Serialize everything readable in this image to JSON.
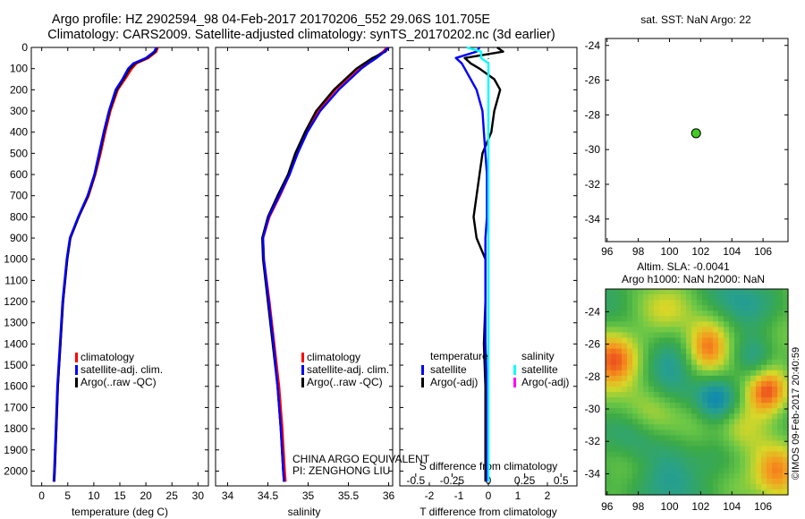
{
  "header": {
    "line1": "Argo profile: HZ 2902594_98 04-Feb-2017 20170206_552 29.06S 101.705E",
    "line2": "Climatology: CARS2009. Satellite-adjusted climatology: synTS_20170202.nc (3d earlier)"
  },
  "side_note": "©IMOS 09-Feb-2017 20:40:59",
  "colors": {
    "climatology": "#ff0000",
    "satellite": "#0000ff",
    "argo": "#000000",
    "sat_sal": "#00ffff",
    "argo_sal": "#ff00ff",
    "dot": "#44cc22"
  },
  "chart_data": [
    {
      "type": "line",
      "id": "temperature",
      "xlabel": "temperature (deg C)",
      "ylabel": "",
      "xlim": [
        -2,
        32
      ],
      "ylim": [
        0,
        2070
      ],
      "xticks": [
        0,
        5,
        10,
        15,
        20,
        25,
        30
      ],
      "yticks": [
        0,
        100,
        200,
        300,
        400,
        500,
        600,
        700,
        800,
        900,
        1000,
        1100,
        1200,
        1300,
        1400,
        1500,
        1600,
        1700,
        1800,
        1900,
        2000
      ],
      "depth": [
        0,
        20,
        50,
        75,
        100,
        150,
        200,
        300,
        400,
        500,
        600,
        700,
        800,
        900,
        1000,
        1200,
        1400,
        1600,
        1800,
        2000,
        2050
      ],
      "legend": [
        "climatology",
        "satellite-adj. clim.",
        "Argo(..raw -QC)"
      ],
      "series": [
        {
          "name": "climatology",
          "values": [
            22.3,
            22.0,
            20.5,
            18.2,
            17.3,
            16.0,
            14.6,
            13.2,
            12.2,
            11.3,
            10.3,
            9.0,
            7.1,
            5.5,
            4.9,
            4.1,
            3.6,
            3.1,
            2.8,
            2.5,
            2.4
          ]
        },
        {
          "name": "satellite-adj. clim.",
          "values": [
            22.0,
            21.6,
            20.0,
            17.6,
            16.6,
            15.5,
            14.2,
            12.9,
            11.9,
            11.0,
            10.1,
            8.8,
            7.0,
            5.4,
            4.8,
            4.0,
            3.5,
            3.0,
            2.7,
            2.4,
            2.3
          ]
        },
        {
          "name": "Argo(..raw -QC)",
          "values": [
            22.1,
            21.8,
            20.2,
            17.9,
            16.9,
            15.7,
            14.4,
            13.0,
            12.0,
            11.1,
            10.2,
            8.9,
            7.1,
            5.5,
            4.9,
            4.1,
            3.6,
            3.1,
            2.8,
            2.5,
            2.4
          ]
        }
      ]
    },
    {
      "type": "line",
      "id": "salinity",
      "xlabel": "salinity",
      "ylabel": "",
      "xlim": [
        33.85,
        36.05
      ],
      "ylim": [
        0,
        2070
      ],
      "xticks": [
        34,
        34.5,
        35,
        35.5,
        36
      ],
      "xticklabels": [
        "34",
        "34.5",
        "35",
        "35.5",
        "36"
      ],
      "depth": [
        0,
        20,
        50,
        75,
        100,
        150,
        200,
        300,
        400,
        500,
        600,
        700,
        800,
        900,
        1000,
        1200,
        1400,
        1600,
        1800,
        2000,
        2050
      ],
      "legend": [
        "climatology",
        "satellite-adj. clim.",
        "Argo(..raw -QC)"
      ],
      "annotation": [
        "CHINA ARGO EQUIVALENT",
        "PI: ZENGHONG LIU"
      ],
      "series": [
        {
          "name": "climatology",
          "values": [
            35.98,
            35.93,
            35.82,
            35.72,
            35.62,
            35.48,
            35.34,
            35.12,
            34.97,
            34.86,
            34.77,
            34.65,
            34.52,
            34.44,
            34.45,
            34.52,
            34.58,
            34.64,
            34.68,
            34.71,
            34.72
          ]
        },
        {
          "name": "satellite-adj. clim.",
          "values": [
            35.99,
            35.95,
            35.85,
            35.75,
            35.66,
            35.52,
            35.38,
            35.15,
            34.99,
            34.87,
            34.77,
            34.64,
            34.51,
            34.44,
            34.45,
            34.51,
            34.57,
            34.62,
            34.66,
            34.69,
            34.7
          ]
        },
        {
          "name": "Argo(..raw -QC)",
          "values": [
            36.0,
            35.96,
            35.8,
            35.7,
            35.6,
            35.46,
            35.32,
            35.1,
            34.96,
            34.84,
            34.75,
            34.62,
            34.5,
            34.43,
            34.44,
            34.5,
            34.56,
            34.62,
            34.66,
            34.69,
            34.7
          ]
        }
      ]
    },
    {
      "type": "line",
      "id": "difference",
      "xlabel": "T difference from climatology",
      "toplabel": "S difference from climatology",
      "xlim": [
        -3,
        3
      ],
      "ylim": [
        0,
        2070
      ],
      "xticks": [
        -2,
        -1,
        0,
        1,
        2
      ],
      "topticks": [
        -0.5,
        -0.25,
        0,
        0.25,
        0.5
      ],
      "topticklabels": [
        "-0.5",
        "-0.25",
        "0",
        "0.25",
        "0.5"
      ],
      "depth": [
        0,
        20,
        50,
        75,
        100,
        150,
        200,
        300,
        400,
        500,
        600,
        700,
        800,
        900,
        1000,
        1200,
        1400,
        1600,
        1800,
        2000,
        2050
      ],
      "legend_headers": [
        "temperature",
        "salinity"
      ],
      "legend": [
        "satellite",
        "Argo(-adj)",
        "satellite",
        "Argo(-adj)"
      ],
      "series": [
        {
          "name": "temperature satellite",
          "values": [
            -0.3,
            -0.4,
            -1.1,
            -0.9,
            -0.8,
            -0.6,
            -0.4,
            -0.2,
            -0.15,
            -0.1,
            -0.05,
            -0.05,
            -0.05,
            -0.1,
            -0.1,
            -0.1,
            -0.1,
            -0.05,
            -0.05,
            -0.05,
            -0.05
          ]
        },
        {
          "name": "temperature Argo(-adj)",
          "values": [
            0.3,
            0.5,
            -0.8,
            -0.6,
            -0.3,
            0.2,
            0.4,
            0.2,
            0.1,
            -0.2,
            -0.3,
            -0.4,
            -0.5,
            -0.4,
            -0.1,
            -0.1,
            -0.15,
            -0.1,
            -0.1,
            -0.1,
            -0.1
          ]
        },
        {
          "name": "salinity satellite",
          "values": [
            -0.15,
            -0.05,
            -0.05,
            0.0,
            0.0,
            0.0,
            0.0,
            0.0,
            0.0,
            0.0,
            0.0,
            0.0,
            0.0,
            0.0,
            0.0,
            0.0,
            0.0,
            0.0,
            0.0,
            0.0,
            0.0
          ]
        }
      ]
    },
    {
      "type": "scatter",
      "id": "sst_map",
      "title": "sat. SST: NaN Argo: 22",
      "xlim": [
        95.9,
        107.6
      ],
      "ylim": [
        -35.3,
        -23.6
      ],
      "xticks": [
        96,
        98,
        100,
        102,
        104,
        106
      ],
      "yticks": [
        -24,
        -26,
        -28,
        -30,
        -32,
        -34
      ],
      "points": [
        {
          "x": 101.705,
          "y": -29.06
        }
      ]
    },
    {
      "type": "heatmap",
      "id": "sla_map",
      "title": [
        "Altim. SLA: -0.0041",
        "Argo h1000: NaN h2000: NaN"
      ],
      "xlim": [
        95.9,
        107.6
      ],
      "ylim": [
        -35.3,
        -22.6
      ],
      "xticks": [
        96,
        98,
        100,
        102,
        104,
        106
      ],
      "yticks": [
        -24,
        -26,
        -28,
        -30,
        -32,
        -34
      ]
    }
  ]
}
